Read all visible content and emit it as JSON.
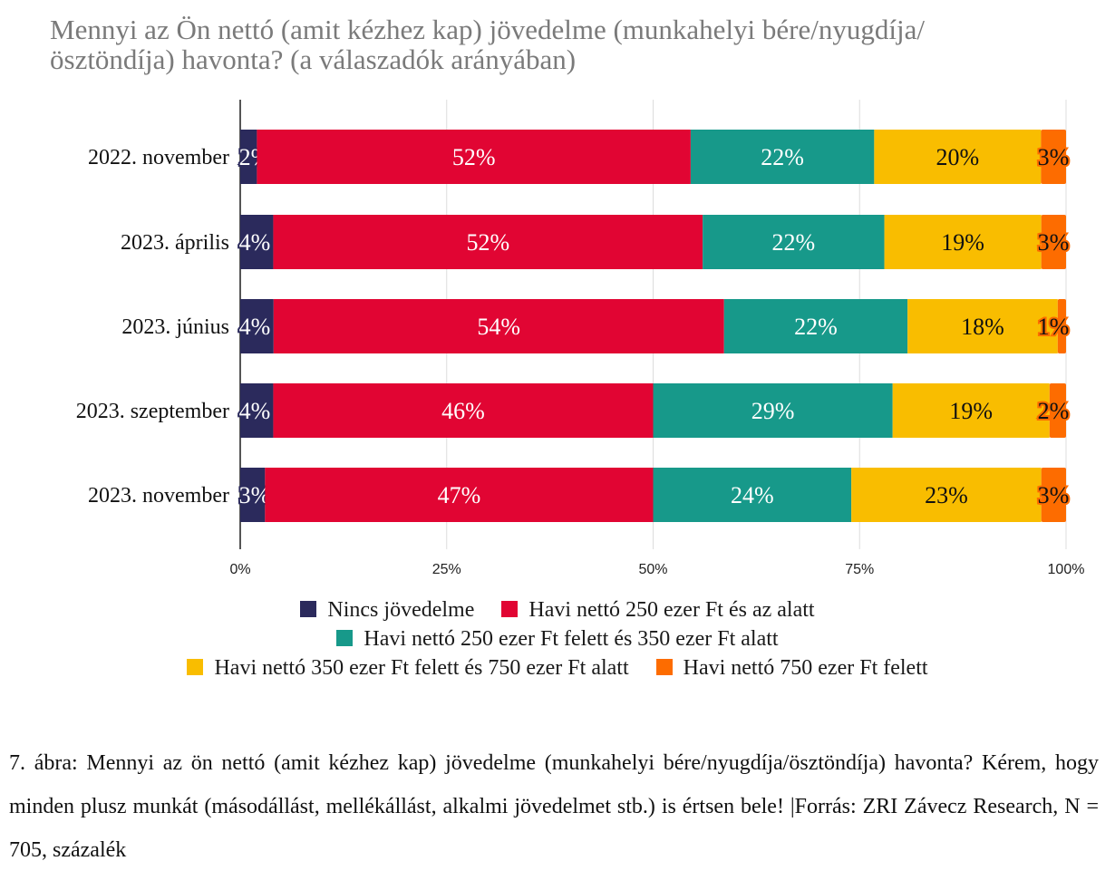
{
  "title": "Mennyi az Ön nettó (amit kézhez kap) jövedelme (munkahelyi bére/nyugdíja/ösztöndíja) havonta? (a válaszadók arányában)",
  "chart_data": {
    "type": "bar",
    "orientation": "horizontal",
    "stacked": true,
    "title": "Mennyi az Ön nettó (amit kézhez kap) jövedelme (munkahelyi bére/nyugdíja/ösztöndíja) havonta? (a válaszadók arányában)",
    "categories": [
      "2022. november",
      "2023. április",
      "2023. június",
      "2023. szeptember",
      "2023. november"
    ],
    "series": [
      {
        "name": "Nincs jövedelme",
        "color": "#2b2a5c",
        "values": [
          2,
          4,
          4,
          4,
          3
        ]
      },
      {
        "name": "Havi nettó 250 ezer Ft és az alatt",
        "color": "#e10533",
        "values": [
          52,
          52,
          54,
          46,
          47
        ]
      },
      {
        "name": "Havi nettó 250 ezer Ft felett és 350 ezer Ft alatt",
        "color": "#17998a",
        "values": [
          22,
          22,
          22,
          29,
          24
        ]
      },
      {
        "name": "Havi nettó 350 ezer Ft felett és 750 ezer Ft alatt",
        "color": "#f9bd00",
        "values": [
          20,
          19,
          18,
          19,
          23
        ]
      },
      {
        "name": "Havi nettó 750 ezer Ft felett",
        "color": "#fd6c00",
        "values": [
          3,
          3,
          1,
          2,
          3
        ]
      }
    ],
    "xlim": [
      0,
      100
    ],
    "xticks": [
      "0%",
      "25%",
      "50%",
      "75%",
      "100%"
    ],
    "grid": true,
    "legend_position": "bottom"
  },
  "caption": "7. ábra: Mennyi az ön nettó (amit kézhez kap) jövedelme (munkahelyi bére/nyugdíja/ösztöndíja) havonta? Kérem, hogy minden plusz munkát (másodállást, mellékállást, alkalmi jövedelmet stb.) is értsen bele! |Forrás: ZRI Závecz Research, N = 705, százalék"
}
